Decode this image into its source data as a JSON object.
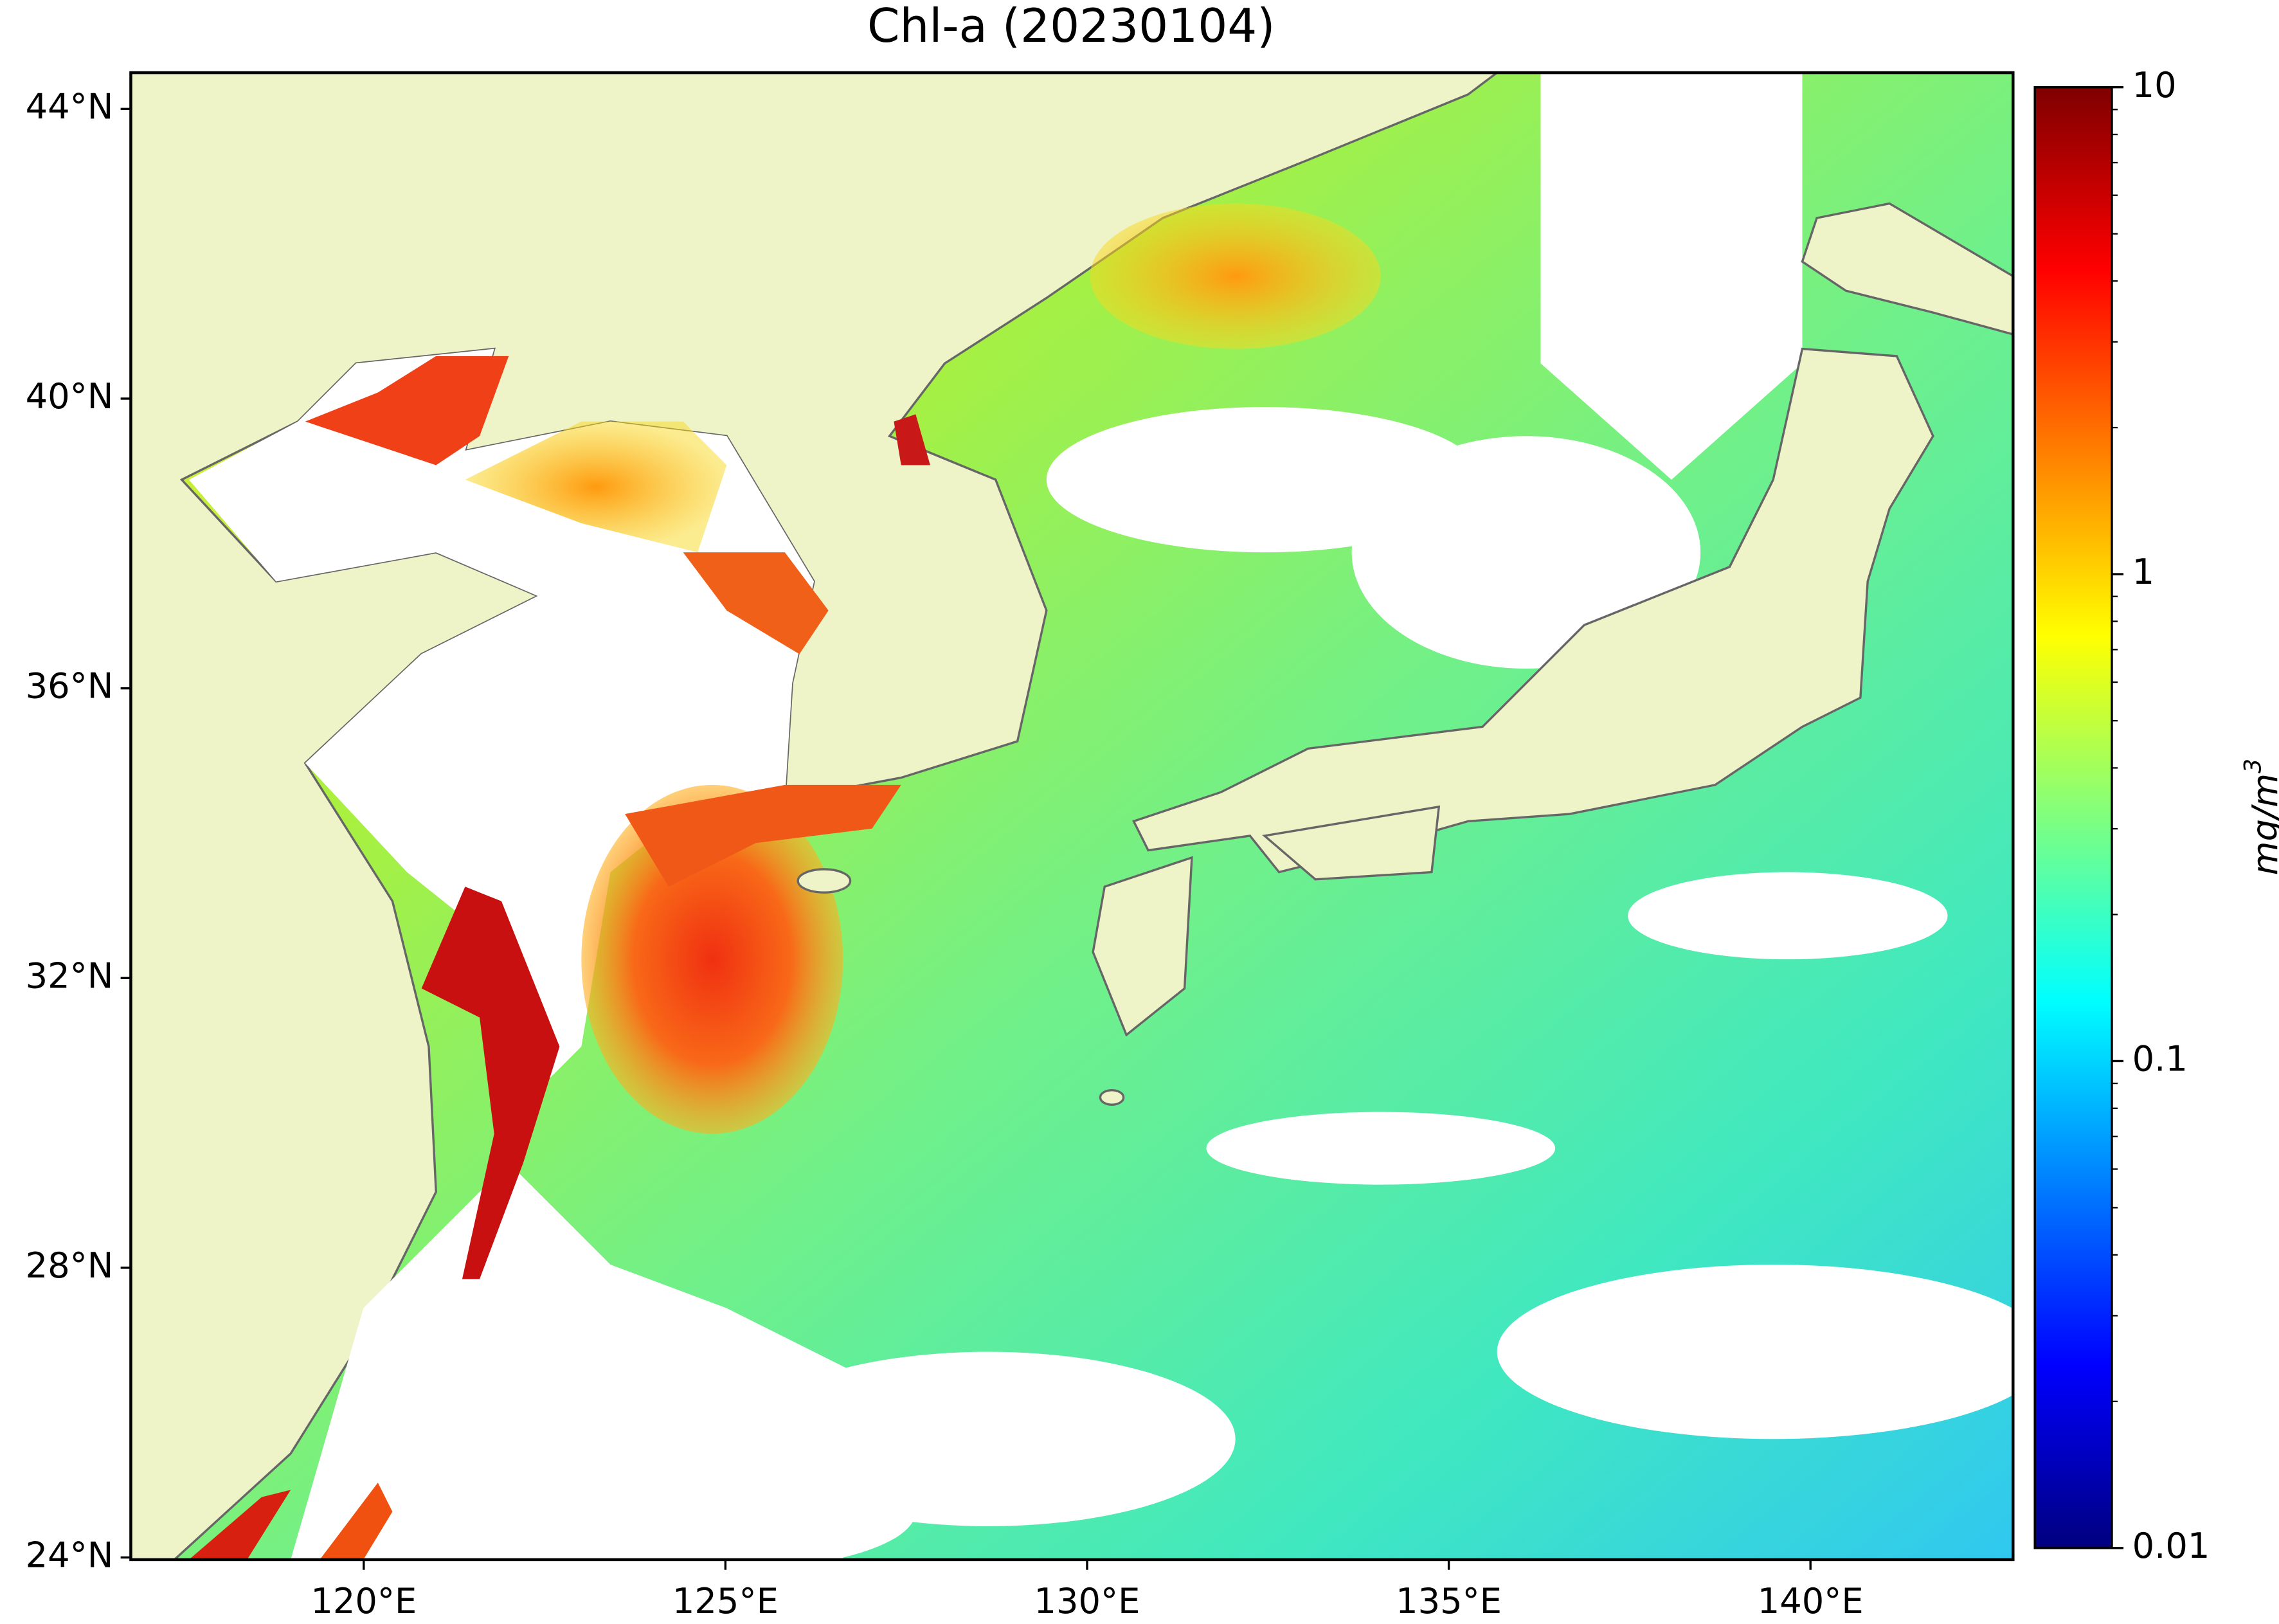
{
  "title": "Chl-a (20230104)",
  "map": {
    "type": "map",
    "xlim": [
      116.78,
      142.8
    ],
    "ylim": [
      23.97,
      44.5
    ],
    "xticks": [
      {
        "value": 120,
        "label": "120°E"
      },
      {
        "value": 125,
        "label": "125°E"
      },
      {
        "value": 130,
        "label": "130°E"
      },
      {
        "value": 135,
        "label": "135°E"
      },
      {
        "value": 140,
        "label": "140°E"
      }
    ],
    "yticks": [
      {
        "value": 24,
        "label": "24°N"
      },
      {
        "value": 28,
        "label": "28°N"
      },
      {
        "value": 32,
        "label": "32°N"
      },
      {
        "value": 36,
        "label": "36°N"
      },
      {
        "value": 40,
        "label": "40°N"
      },
      {
        "value": 44,
        "label": "44°N"
      }
    ]
  },
  "colorbar": {
    "scale": "log",
    "colormap": "jet",
    "lim": [
      0.01,
      10
    ],
    "ticks": [
      0.01,
      0.1,
      1,
      10
    ],
    "label": "mg/m",
    "label_superscript": "3"
  }
}
